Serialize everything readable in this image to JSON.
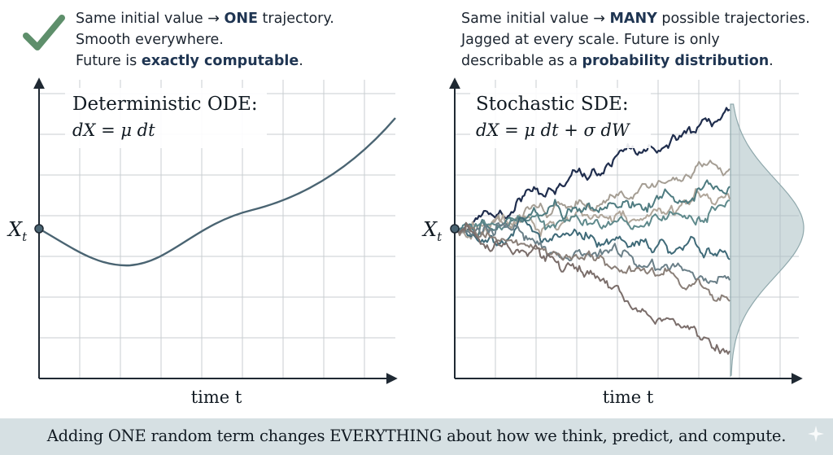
{
  "left_panel": {
    "notes": [
      {
        "pre": "Same initial value → ",
        "strong": "ONE",
        "post": " trajectory."
      },
      {
        "pre": "Smooth everywhere.",
        "strong": "",
        "post": ""
      },
      {
        "pre": "Future is ",
        "strong": "exactly computable",
        "post": "."
      }
    ],
    "title": "Deterministic ODE:",
    "equation": "dX = μ dt",
    "ylabel": "X",
    "ylabel_sub": "t",
    "xlabel": "time t",
    "check_icon": "check-mark-icon",
    "line_color": "#4a6472"
  },
  "right_panel": {
    "notes": [
      {
        "pre": "Same initial value → ",
        "strong": "MANY",
        "post": " possible trajectories."
      },
      {
        "pre": "Jagged at every scale. Future is only",
        "strong": "",
        "post": ""
      },
      {
        "pre": "describable as a ",
        "strong": "probability distribution",
        "post": "."
      }
    ],
    "title": "Stochastic SDE:",
    "equation": "dX = μ dt + σ dW",
    "ylabel": "X",
    "ylabel_sub": "t",
    "xlabel": "time t",
    "path_colors": [
      "#1f2d4d",
      "#a59e94",
      "#b0a69a",
      "#4e7b80",
      "#5f8a8c",
      "#3f6a78",
      "#6a7f88",
      "#8a7f78",
      "#7a6d6a"
    ],
    "density_color": "#a9bfc2"
  },
  "footer": {
    "text": "Adding ONE random term changes EVERYTHING about how we think, predict, and compute."
  }
}
